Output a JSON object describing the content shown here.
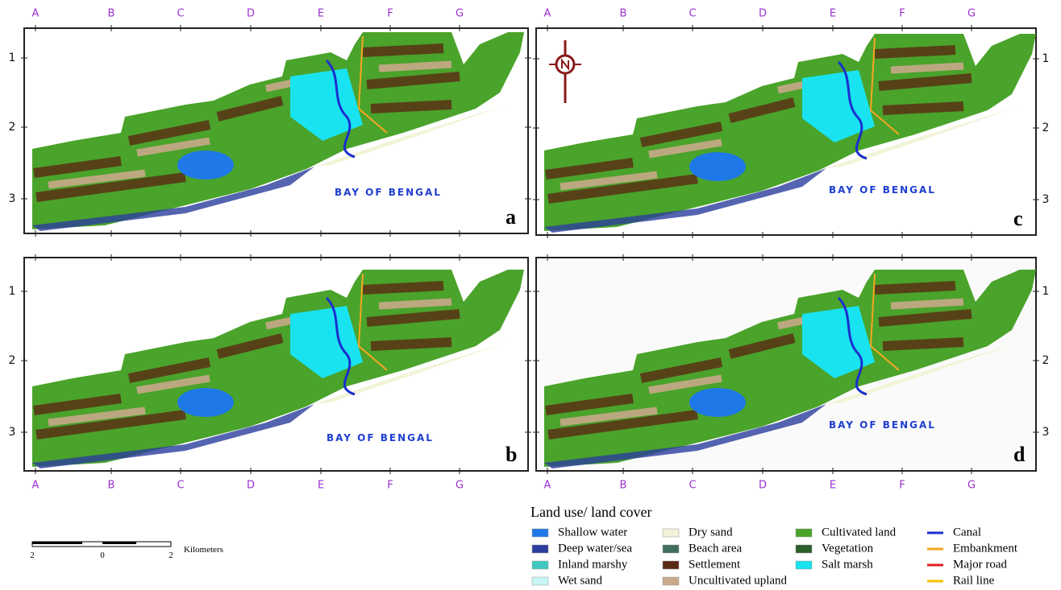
{
  "panels": [
    {
      "letter": "a",
      "sea_label": "BAY OF BENGAL"
    },
    {
      "letter": "b",
      "sea_label": "BAY OF BENGAL"
    },
    {
      "letter": "c",
      "sea_label": "BAY OF BENGAL"
    },
    {
      "letter": "d",
      "sea_label": "BAY OF BENGAL"
    }
  ],
  "grid": {
    "columns": [
      "A",
      "B",
      "C",
      "D",
      "E",
      "F",
      "G"
    ],
    "rows": [
      "1",
      "2",
      "3"
    ]
  },
  "scale_bar": {
    "ticks": [
      "2",
      "0",
      "2"
    ],
    "unit": "Kilometers"
  },
  "legend": {
    "title": "Land use/ land cover",
    "items": [
      {
        "label": "Shallow water",
        "color": "#1f78e8",
        "kind": "area"
      },
      {
        "label": "Deep water/sea",
        "color": "#2b3d9c",
        "kind": "area"
      },
      {
        "label": "Inland marshy",
        "color": "#3fc9c0",
        "kind": "area"
      },
      {
        "label": "Wet sand",
        "color": "#c8f5f5",
        "kind": "area"
      },
      {
        "label": "Dry sand",
        "color": "#f3f3d9",
        "kind": "area"
      },
      {
        "label": "Beach area",
        "color": "#3f6e5f",
        "kind": "area"
      },
      {
        "label": "Settlement",
        "color": "#5b2a14",
        "kind": "area"
      },
      {
        "label": "Uncultivated upland",
        "color": "#c9a98a",
        "kind": "area"
      },
      {
        "label": "Cultivated land",
        "color": "#4aa32a",
        "kind": "area"
      },
      {
        "label": "Vegetation",
        "color": "#2b5e2a",
        "kind": "area"
      },
      {
        "label": "Salt marsh",
        "color": "#19e3f0",
        "kind": "area"
      },
      {
        "label": "Canal",
        "color": "#1a2fd0",
        "kind": "line"
      },
      {
        "label": "Embankment",
        "color": "#f5a623",
        "kind": "line"
      },
      {
        "label": "Major road",
        "color": "#e02020",
        "kind": "line"
      },
      {
        "label": "Rail line",
        "color": "#f2c200",
        "kind": "line"
      }
    ]
  }
}
